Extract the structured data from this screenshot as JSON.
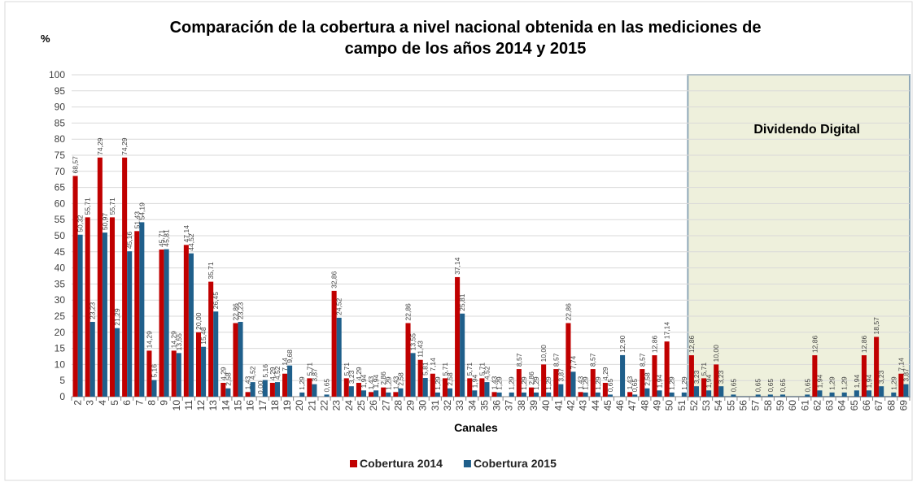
{
  "chart_data": {
    "type": "bar",
    "title": "Comparación de la cobertura a nivel nacional obtenida en las mediciones de campo de los años 2014 y 2015",
    "ylabel": "%",
    "xlabel": "Canales",
    "categories": [
      "2",
      "3",
      "4",
      "5",
      "6",
      "7",
      "8",
      "9",
      "10",
      "11",
      "12",
      "13",
      "14",
      "15",
      "16",
      "17",
      "18",
      "19",
      "20",
      "21",
      "22",
      "23",
      "24",
      "25",
      "26",
      "27",
      "28",
      "29",
      "30",
      "31",
      "32",
      "33",
      "34",
      "35",
      "36",
      "37",
      "38",
      "39",
      "40",
      "41",
      "42",
      "43",
      "44",
      "45",
      "46",
      "47",
      "48",
      "49",
      "50",
      "51",
      "52",
      "53",
      "54",
      "55",
      "56",
      "57",
      "58",
      "59",
      "60",
      "61",
      "62",
      "63",
      "64",
      "65",
      "66",
      "67",
      "68",
      "69"
    ],
    "series": [
      {
        "name": "Cobertura 2014",
        "color": "#c00000",
        "values": [
          68.57,
          55.71,
          74.29,
          55.71,
          74.29,
          51.43,
          14.29,
          45.71,
          14.29,
          47.14,
          20.0,
          35.71,
          4.29,
          22.86,
          1.43,
          0,
          4.29,
          7.14,
          0,
          5.71,
          0,
          32.86,
          5.71,
          4.29,
          1.43,
          2.86,
          1.43,
          22.86,
          11.43,
          7.14,
          5.71,
          37.14,
          5.71,
          5.71,
          1.43,
          0,
          8.57,
          2.86,
          10.0,
          8.57,
          22.86,
          1.43,
          8.57,
          4.29,
          0,
          1.43,
          8.57,
          12.86,
          17.14,
          0,
          12.86,
          5.71,
          10.0,
          0,
          0,
          0,
          0,
          0,
          0,
          0,
          12.86,
          0,
          0,
          0,
          12.86,
          18.57,
          0,
          7.14
        ],
        "value_labels": [
          "68,57",
          "55,71",
          "74,29",
          "55,71",
          "74,29",
          "51,43",
          "14,29",
          "45,71",
          "14,29",
          "47,14",
          "20,00",
          "35,71",
          "4,29",
          "22,86",
          "1,43",
          "0,00",
          "4,29",
          "7,14",
          null,
          "5,71",
          null,
          "32,86",
          "5,71",
          "4,29",
          "1,43",
          "2,86",
          "1,43",
          "22,86",
          "11,43",
          "7,14",
          "5,71",
          "37,14",
          "5,71",
          "5,71",
          "1,43",
          null,
          "8,57",
          "2,86",
          "10,00",
          "8,57",
          "22,86",
          "1,43",
          "8,57",
          "4,29",
          null,
          "1,43",
          "8,57",
          "12,86",
          "17,14",
          null,
          "12,86",
          "5,71",
          "10,00",
          null,
          null,
          null,
          null,
          null,
          null,
          null,
          "12,86",
          null,
          null,
          null,
          "12,86",
          "18,57",
          null,
          "7,14"
        ]
      },
      {
        "name": "Cobertura 2015",
        "color": "#1f5f8b",
        "values": [
          50.32,
          23.23,
          50.97,
          21.29,
          45.16,
          54.19,
          5.16,
          45.81,
          13.55,
          44.52,
          15.48,
          26.45,
          2.58,
          23.23,
          4.52,
          5.16,
          4.52,
          9.68,
          1.29,
          3.87,
          0.65,
          24.52,
          3.23,
          1.94,
          1.94,
          1.29,
          2.58,
          13.55,
          5.81,
          1.29,
          2.58,
          25.81,
          1.94,
          4.52,
          1.29,
          1.29,
          1.29,
          1.29,
          1.29,
          3.87,
          7.74,
          1.29,
          1.29,
          0.65,
          12.9,
          0.65,
          2.58,
          1.94,
          1.29,
          1.29,
          3.23,
          1.94,
          3.23,
          0.65,
          0,
          0.65,
          0.65,
          0.65,
          0,
          0.65,
          1.94,
          1.29,
          1.29,
          1.94,
          1.94,
          3.23,
          1.29,
          3.87
        ],
        "value_labels": [
          "50,32",
          "23,23",
          "50,97",
          "21,29",
          "45,16",
          "54,19",
          "5,16",
          "45,81",
          "13,55",
          "44,52",
          "15,48",
          "26,45",
          "2,58",
          "23,23",
          "4,52",
          "5,16",
          "4,52",
          "9,68",
          "1,29",
          "3,87",
          "0,65",
          "24,52",
          "3,23",
          "1,94",
          "1,94",
          "1,29",
          "2,58",
          "13,55",
          "5,81",
          "1,29",
          "2,58",
          "25,81",
          "1,94",
          "4,52",
          "1,29",
          "1,29",
          "1,29",
          "1,29",
          "1,29",
          "3,87",
          "7,74",
          "1,29",
          "1,29",
          "0,65",
          "12,90",
          "0,65",
          "2,58",
          "1,94",
          "1,29",
          "1,29",
          "3,23",
          "1,94",
          "3,23",
          "0,65",
          null,
          "0,65",
          "0,65",
          "0,65",
          null,
          "0,65",
          "1,94",
          "1,29",
          "1,29",
          "1,94",
          "1,94",
          "3,23",
          "1,29",
          "3,87"
        ]
      }
    ],
    "ylim": [
      0,
      100
    ],
    "yticks": [
      0,
      5,
      10,
      15,
      20,
      25,
      30,
      35,
      40,
      45,
      50,
      55,
      60,
      65,
      70,
      75,
      80,
      85,
      90,
      95,
      100
    ],
    "grid": true,
    "legend": "bottom",
    "annotation": {
      "text": "Dividendo Digital",
      "from": "52",
      "to": "69"
    }
  }
}
